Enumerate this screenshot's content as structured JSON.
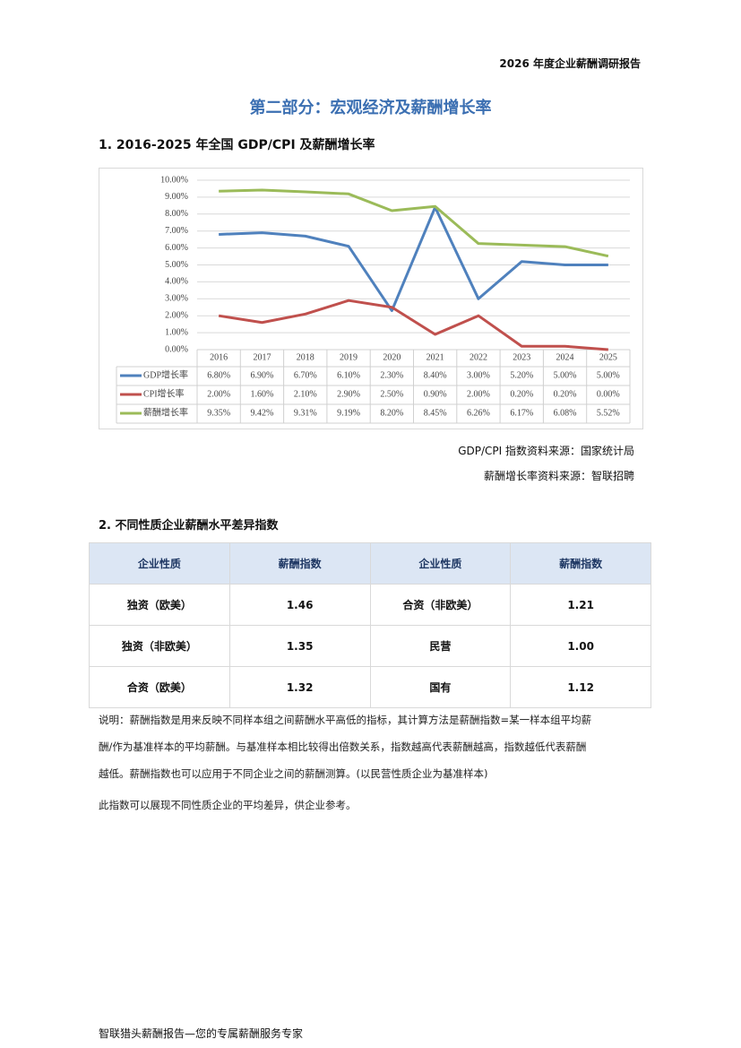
{
  "header": {
    "report": "2026 年度企业薪酬调研报告",
    "title": "第二部分：宏观经济及薪酬增长率"
  },
  "section1": {
    "heading": "1. 2016-2025 年全国 GDP/CPI 及薪酬增长率",
    "sources": [
      "GDP/CPI 指数资料来源：国家统计局",
      "薪酬增长率资料来源：智联招聘"
    ]
  },
  "chart_data": {
    "type": "line",
    "categories": [
      "2016",
      "2017",
      "2018",
      "2019",
      "2020",
      "2021",
      "2022",
      "2023",
      "2024",
      "2025"
    ],
    "series": [
      {
        "name": "GDP增长率",
        "color": "#4f81bd",
        "values": [
          6.8,
          6.9,
          6.7,
          6.1,
          2.3,
          8.4,
          3.0,
          5.2,
          5.0,
          5.0
        ],
        "value_labels": [
          "6.80%",
          "6.90%",
          "6.70%",
          "6.10%",
          "2.30%",
          "8.40%",
          "3.00%",
          "5.20%",
          "5.00%",
          "5.00%"
        ]
      },
      {
        "name": "CPI增长率",
        "color": "#c0504d",
        "values": [
          2.0,
          1.6,
          2.1,
          2.9,
          2.5,
          0.9,
          2.0,
          0.2,
          0.2,
          0.0
        ],
        "value_labels": [
          "2.00%",
          "1.60%",
          "2.10%",
          "2.90%",
          "2.50%",
          "0.90%",
          "2.00%",
          "0.20%",
          "0.20%",
          "0.00%"
        ]
      },
      {
        "name": "薪酬增长率",
        "color": "#9bbb59",
        "values": [
          9.35,
          9.42,
          9.31,
          9.19,
          8.2,
          8.45,
          6.26,
          6.17,
          6.08,
          5.52
        ],
        "value_labels": [
          "9.35%",
          "9.42%",
          "9.31%",
          "9.19%",
          "8.20%",
          "8.45%",
          "6.26%",
          "6.17%",
          "6.08%",
          "5.52%"
        ]
      }
    ],
    "ylim": [
      0,
      10
    ],
    "yticks": [
      {
        "value": 0,
        "label": "0.00%"
      },
      {
        "value": 1,
        "label": "1.00%"
      },
      {
        "value": 2,
        "label": "2.00%"
      },
      {
        "value": 3,
        "label": "3.00%"
      },
      {
        "value": 4,
        "label": "4.00%"
      },
      {
        "value": 5,
        "label": "5.00%"
      },
      {
        "value": 6,
        "label": "6.00%"
      },
      {
        "value": 7,
        "label": "7.00%"
      },
      {
        "value": 8,
        "label": "8.00%"
      },
      {
        "value": 9,
        "label": "9.00%"
      },
      {
        "value": 10,
        "label": "10.00%"
      }
    ],
    "grid": true
  },
  "section2": {
    "heading": "2.  不同性质企业薪酬水平差异指数",
    "table": {
      "header": [
        "企业性质",
        "薪酬指数",
        "企业性质",
        "薪酬指数"
      ],
      "rows": [
        [
          "独资（欧美）",
          "1.46",
          "合资（非欧美）",
          "1.21"
        ],
        [
          "独资（非欧美）",
          "1.35",
          "民营",
          "1.00"
        ],
        [
          "合资（欧美）",
          "1.32",
          "国有",
          "1.12"
        ]
      ]
    },
    "notes": [
      "说明：薪酬指数是用来反映不同样本组之间薪酬水平高低的指标，其计算方法是薪酬指数=某一样本组平均薪",
      "酬/作为基准样本的平均薪酬。与基准样本相比较得出倍数关系，指数越高代表薪酬越高，指数越低代表薪酬",
      "越低。薪酬指数也可以应用于不同企业之间的薪酬测算。(以民营性质企业为基准样本)",
      "此指数可以展现不同性质企业的平均差异，供企业参考。"
    ]
  },
  "footer": "智联猎头薪酬报告—您的专属薪酬服务专家"
}
